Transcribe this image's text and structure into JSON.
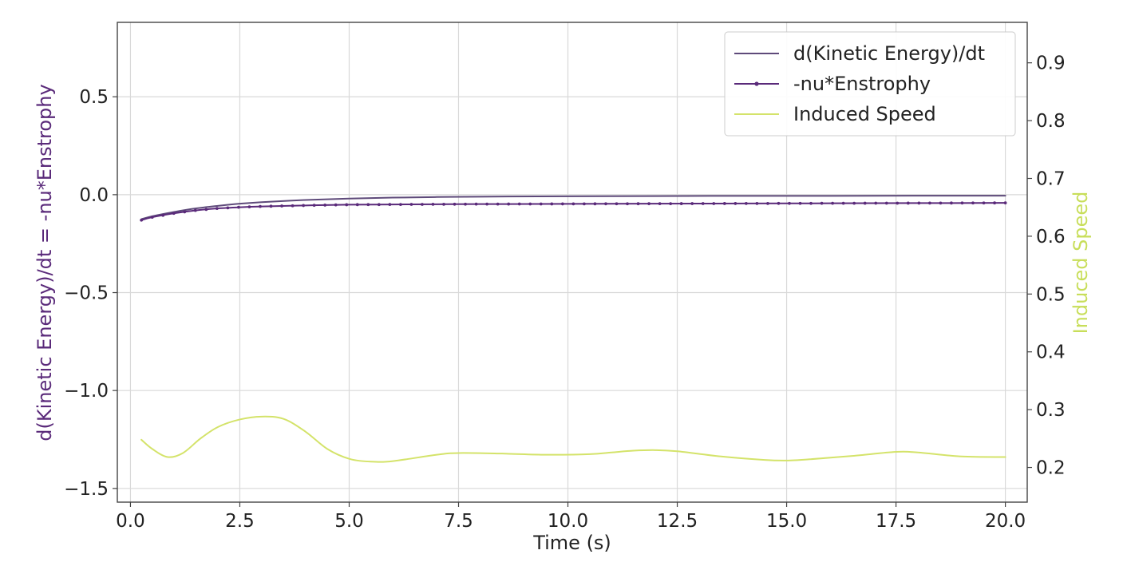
{
  "chart_data": {
    "type": "line",
    "xlabel": "Time (s)",
    "ylabel_left": "d(Kinetic Energy)/dt = -nu*Enstrophy",
    "ylabel_right": "Induced Speed",
    "xlim": [
      -0.3,
      20.5
    ],
    "ylim_left": [
      -1.57,
      0.88
    ],
    "ylim_right": [
      0.14,
      0.97
    ],
    "x_ticks": [
      0.0,
      2.5,
      5.0,
      7.5,
      10.0,
      12.5,
      15.0,
      17.5,
      20.0
    ],
    "x_tick_labels": [
      "0.0",
      "2.5",
      "5.0",
      "7.5",
      "10.0",
      "12.5",
      "15.0",
      "17.5",
      "20.0"
    ],
    "y_left_ticks": [
      0.5,
      0.0,
      -0.5,
      -1.0,
      -1.5
    ],
    "y_left_tick_labels": [
      "0.5",
      "0.0",
      "−0.5",
      "−1.0",
      "−1.5"
    ],
    "y_right_ticks": [
      0.9,
      0.8,
      0.7,
      0.6,
      0.5,
      0.4,
      0.3,
      0.2
    ],
    "y_right_tick_labels": [
      "0.9",
      "0.8",
      "0.7",
      "0.6",
      "0.5",
      "0.4",
      "0.3",
      "0.2"
    ],
    "grid": true,
    "legend_position": "top-right",
    "colors": {
      "dke": "#5e4a7a",
      "enstrophy": "#5a2a7a",
      "speed": "#d4e36a",
      "left_label": "#5a2a7a",
      "right_label": "#c8de5a"
    },
    "series": [
      {
        "name": "d(Kinetic Energy)/dt",
        "axis": "left",
        "marker": "none",
        "x": [
          0.25,
          0.5,
          1.0,
          1.5,
          2.0,
          2.5,
          3.0,
          4.0,
          5.0,
          6.0,
          7.0,
          8.0,
          10.0,
          12.0,
          14.0,
          16.0,
          18.0,
          20.0
        ],
        "y": [
          -0.125,
          -0.11,
          -0.088,
          -0.07,
          -0.057,
          -0.046,
          -0.038,
          -0.027,
          -0.02,
          -0.015,
          -0.012,
          -0.01,
          -0.008,
          -0.007,
          -0.006,
          -0.006,
          -0.005,
          -0.005
        ]
      },
      {
        "name": "-nu*Enstrophy",
        "axis": "left",
        "marker": "dot",
        "x": [
          0.25,
          0.5,
          1.0,
          1.5,
          2.0,
          2.5,
          3.0,
          4.0,
          5.0,
          6.0,
          7.0,
          8.0,
          10.0,
          12.0,
          14.0,
          16.0,
          18.0,
          20.0
        ],
        "y": [
          -0.13,
          -0.115,
          -0.095,
          -0.08,
          -0.07,
          -0.064,
          -0.06,
          -0.055,
          -0.051,
          -0.05,
          -0.049,
          -0.048,
          -0.047,
          -0.046,
          -0.045,
          -0.044,
          -0.043,
          -0.042
        ]
      },
      {
        "name": "Induced Speed",
        "axis": "right",
        "marker": "none",
        "x": [
          0.25,
          0.5,
          0.85,
          1.2,
          1.6,
          2.0,
          2.5,
          3.0,
          3.5,
          4.0,
          4.5,
          5.0,
          5.5,
          6.0,
          7.0,
          7.5,
          8.5,
          9.5,
          10.5,
          11.0,
          11.5,
          12.0,
          12.5,
          13.5,
          14.5,
          15.0,
          15.5,
          16.5,
          17.5,
          18.0,
          19.0,
          20.0
        ],
        "y": [
          0.248,
          0.232,
          0.218,
          0.225,
          0.25,
          0.27,
          0.283,
          0.288,
          0.284,
          0.262,
          0.232,
          0.215,
          0.21,
          0.211,
          0.222,
          0.225,
          0.224,
          0.222,
          0.223,
          0.226,
          0.229,
          0.23,
          0.228,
          0.219,
          0.213,
          0.212,
          0.214,
          0.22,
          0.227,
          0.226,
          0.219,
          0.218
        ]
      }
    ]
  }
}
